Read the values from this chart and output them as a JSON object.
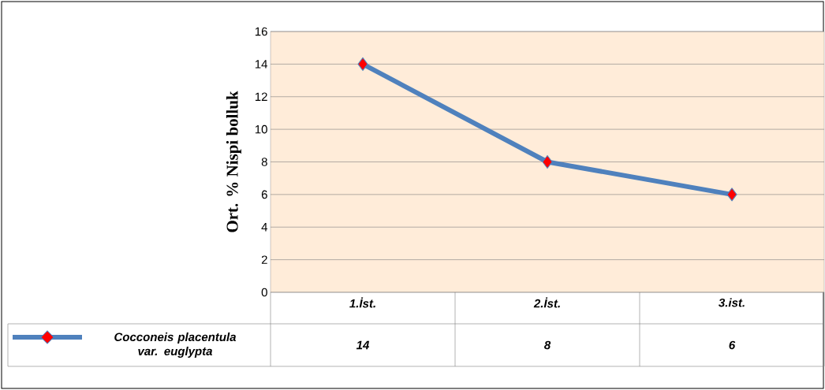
{
  "chart_data": {
    "type": "line",
    "ylabel": "Ort. % Nispi bolluk",
    "categories": [
      "1.İst.",
      "2.İst.",
      "3.ist."
    ],
    "series": [
      {
        "name": "Cocconeis placentula var. euglypta",
        "color": "#4f81bd",
        "values": [
          14,
          8,
          6
        ]
      }
    ],
    "ylim": [
      0,
      16
    ],
    "yticks": [
      0,
      2,
      4,
      6,
      8,
      10,
      12,
      14,
      16
    ],
    "grid": "y",
    "legend": "bottom",
    "marker": "diamond",
    "data_labels": true
  }
}
